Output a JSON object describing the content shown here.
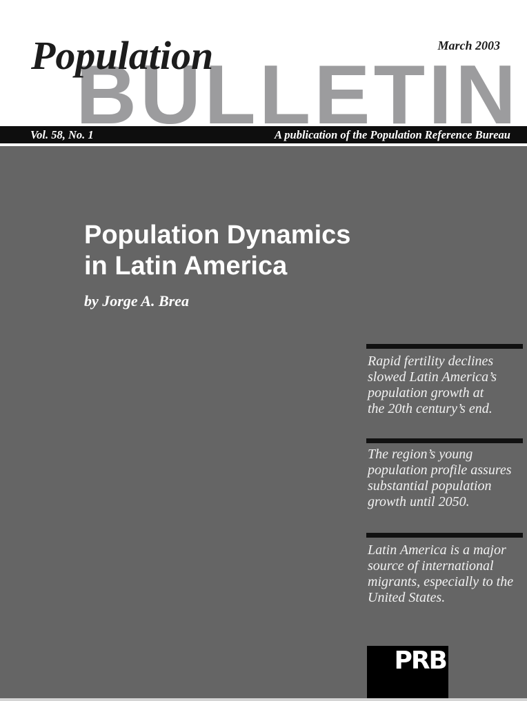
{
  "masthead": {
    "serial_title_italic": "Population",
    "serial_title_block": "BULLETIN",
    "issue_date": "March 2003",
    "volume": "Vol. 58, No. 1",
    "publisher": "A publication of the Population Reference Bureau"
  },
  "article": {
    "title_lines": [
      "Population Dynamics",
      "in Latin America"
    ],
    "byline": "by Jorge A. Brea"
  },
  "callouts": [
    {
      "lines": [
        "Rapid fertility declines",
        "slowed Latin America’s",
        "population growth at",
        "the 20th century’s end."
      ]
    },
    {
      "lines": [
        "The region’s young",
        "population profile assures",
        "substantial population",
        "growth until 2050."
      ]
    },
    {
      "lines": [
        "Latin America is a major",
        "source of international",
        "migrants, especially to the",
        "United States."
      ]
    }
  ],
  "logo": {
    "text": "PRB"
  },
  "colors": {
    "cover_gray": "#656565",
    "bulletin_gray": "#9c9c9e",
    "bar_black": "#0e0e0e",
    "text_white": "#ffffff",
    "ink_black": "#1c1c1c",
    "rule_black": "#111111",
    "bottom_strip": "#d4d4d4"
  }
}
